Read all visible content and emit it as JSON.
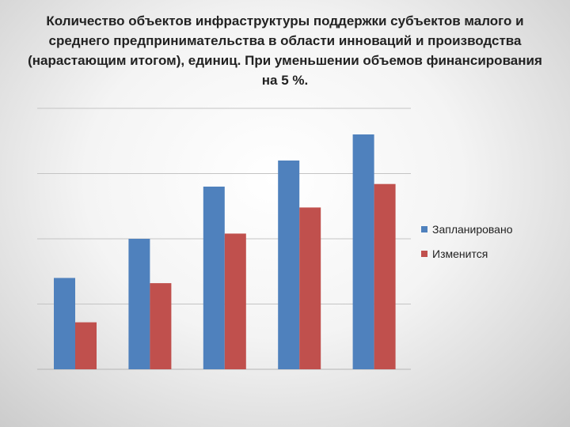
{
  "chart_data": {
    "type": "bar",
    "title": "Количество объектов инфраструктуры поддержки субъектов малого и среднего предпринимательства в области инноваций и производства (нарастающим итогом), единиц. При уменьшении объемов финансирования на 5 %.",
    "categories": [
      "",
      "",
      "",
      "",
      ""
    ],
    "series": [
      {
        "name": "Запланировано",
        "color": "#4f81bd",
        "values": [
          1.4,
          2.0,
          2.8,
          3.2,
          3.6
        ]
      },
      {
        "name": "Изменится",
        "color": "#c0504d",
        "values": [
          0.72,
          1.32,
          2.08,
          2.48,
          2.84
        ]
      }
    ],
    "ylim": [
      0,
      4
    ],
    "grid": true,
    "legend_position": "right"
  }
}
